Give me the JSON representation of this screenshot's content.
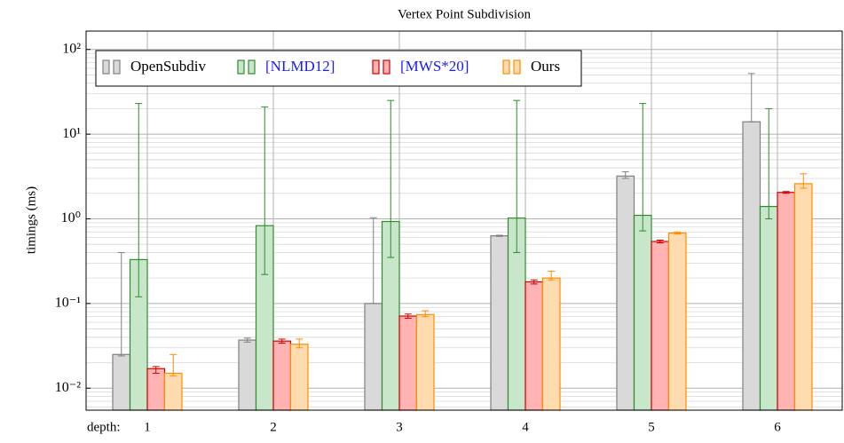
{
  "chart_data": {
    "type": "bar",
    "title": "Vertex Point Subdivision",
    "y_label": "timings (ms)",
    "x_label": "depth:",
    "categories": [
      "1",
      "2",
      "3",
      "4",
      "5",
      "6"
    ],
    "log_scale": true,
    "grid": true,
    "legend": "top-left",
    "ylim": [
      0.0055,
      165
    ],
    "yticks": [
      {
        "value": 0.01,
        "label": "10⁻²"
      },
      {
        "value": 0.1,
        "label": "10⁻¹"
      },
      {
        "value": 1,
        "label": "10⁰"
      },
      {
        "value": 10,
        "label": "10¹"
      },
      {
        "value": 100,
        "label": "10²"
      }
    ],
    "series": [
      {
        "name": "OpenSubdiv",
        "color": "#808080",
        "fill": "#d9d9d9",
        "name_color": "#000000",
        "values": [
          0.025,
          0.037,
          0.1,
          0.63,
          3.2,
          14
        ],
        "err_low": [
          0.024,
          0.035,
          0.1,
          0.62,
          3.0,
          14
        ],
        "err_high": [
          0.4,
          0.039,
          1.03,
          0.64,
          3.6,
          52
        ]
      },
      {
        "name": "[NLMD12]",
        "color": "#2e8b2e",
        "fill": "#c8e6c9",
        "name_color": "#1a1aff",
        "values": [
          0.33,
          0.83,
          0.93,
          1.02,
          1.1,
          1.4
        ],
        "err_low": [
          0.12,
          0.22,
          0.35,
          0.4,
          0.72,
          1.0
        ],
        "err_high": [
          23,
          21,
          25,
          25,
          23,
          20
        ]
      },
      {
        "name": "[MWS*20]",
        "color": "#d40000",
        "fill": "#ffb3b3",
        "name_color": "#1a1aff",
        "values": [
          0.017,
          0.036,
          0.071,
          0.18,
          0.54,
          2.05
        ],
        "err_low": [
          0.015,
          0.034,
          0.067,
          0.17,
          0.52,
          2.0
        ],
        "err_high": [
          0.018,
          0.038,
          0.075,
          0.19,
          0.56,
          2.1
        ]
      },
      {
        "name": "Ours",
        "color": "#ff8c00",
        "fill": "#ffdcb0",
        "name_color": "#000000",
        "values": [
          0.015,
          0.033,
          0.074,
          0.2,
          0.68,
          2.6
        ],
        "err_low": [
          0.014,
          0.03,
          0.07,
          0.19,
          0.66,
          2.3
        ],
        "err_high": [
          0.025,
          0.038,
          0.082,
          0.24,
          0.7,
          3.4
        ]
      }
    ]
  }
}
